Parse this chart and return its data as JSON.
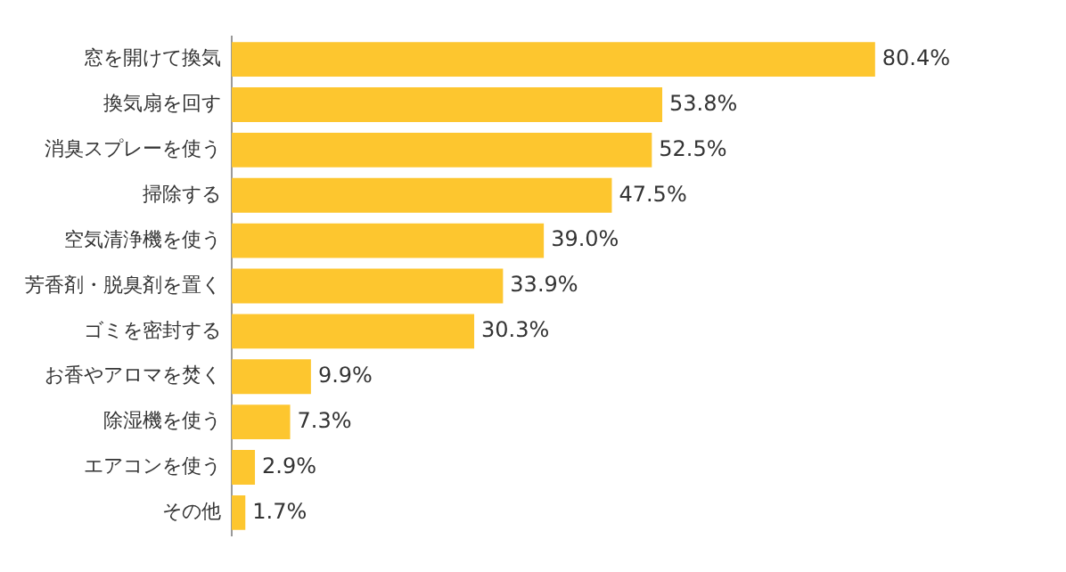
{
  "chart_data": {
    "type": "bar",
    "orientation": "horizontal",
    "categories": [
      "窓を開けて換気",
      "換気扇を回す",
      "消臭スプレーを使う",
      "掃除する",
      "空気清浄機を使う",
      "芳香剤・脱臭剤を置く",
      "ゴミを密封する",
      "お香やアロマを焚く",
      "除湿機を使う",
      "エアコンを使う",
      "その他"
    ],
    "values": [
      80.4,
      53.8,
      52.5,
      47.5,
      39.0,
      33.9,
      30.3,
      9.9,
      7.3,
      2.9,
      1.7
    ],
    "color": "#fdc62f",
    "value_labels": [
      "80.4%",
      "53.8%",
      "52.5%",
      "47.5%",
      "39.0%",
      "33.9%",
      "30.3%",
      "9.9%",
      "7.3%",
      "2.9%",
      "1.7%"
    ],
    "legend": false
  }
}
